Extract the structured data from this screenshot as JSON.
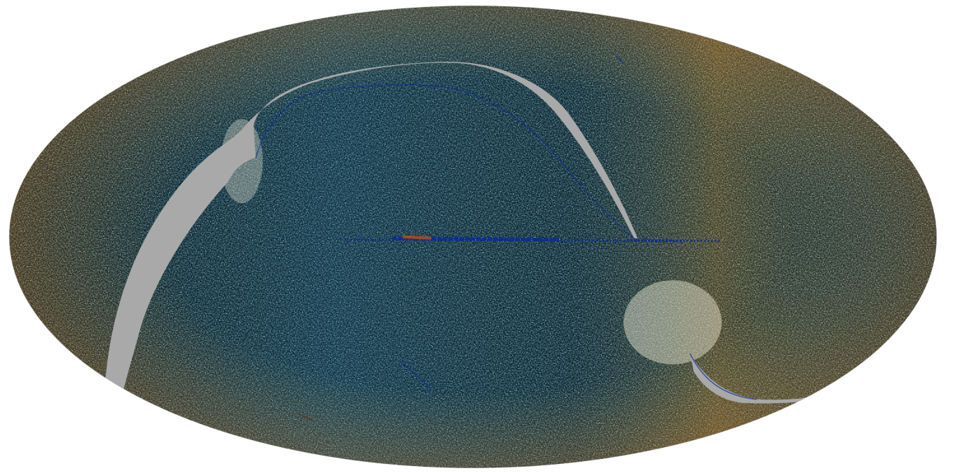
{
  "figure": {
    "projection": "mollweide",
    "colormap": {
      "low": "#0a2a9c",
      "mid_low": "#1e90d8",
      "mid": "#9fe0e6",
      "neutral": "#f4efd8",
      "mid_high": "#f2b84a",
      "high": "#c84a10"
    },
    "mask_color": "#a9a9a9",
    "background_color": "#ffffff",
    "features": [
      "galactic-plane-band",
      "masked-scan-gap-arc-left",
      "masked-scan-gap-arc-bottom-right",
      "ecliptic-scan-streaks"
    ]
  }
}
